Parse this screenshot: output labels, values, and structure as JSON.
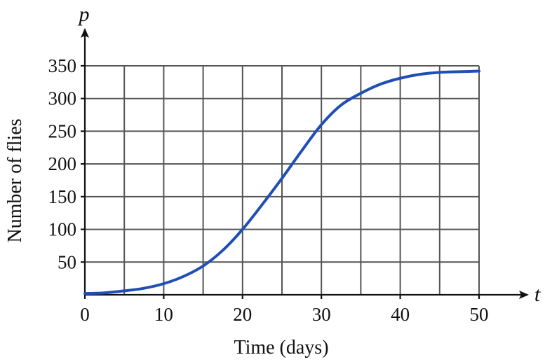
{
  "chart_data": {
    "type": "line",
    "title": "",
    "xlabel": "Time (days)",
    "ylabel": "Number of flies",
    "x_axis_variable": "t",
    "y_axis_variable": "p",
    "xlim": [
      0,
      50
    ],
    "ylim": [
      0,
      350
    ],
    "x_ticks": [
      0,
      10,
      20,
      30,
      40,
      50
    ],
    "x_tick_labels": [
      "0",
      "10",
      "20",
      "30",
      "40",
      "50"
    ],
    "y_ticks": [
      50,
      100,
      150,
      200,
      250,
      300,
      350
    ],
    "y_tick_labels": [
      "50",
      "100",
      "150",
      "200",
      "250",
      "300",
      "350"
    ],
    "grid": true,
    "grid_x_step": 5,
    "grid_y_step": 50,
    "series": [
      {
        "color": "#1f4fb5",
        "x": [
          0,
          2.5,
          5,
          7.5,
          10,
          12.5,
          15,
          17.5,
          20,
          22.5,
          25,
          27.5,
          30,
          32.5,
          35,
          37.5,
          40,
          42.5,
          45,
          47.5,
          50
        ],
        "y": [
          2,
          3,
          6,
          10,
          17,
          28,
          44,
          68,
          100,
          138,
          178,
          220,
          260,
          290,
          308,
          322,
          331,
          337,
          340,
          341,
          342
        ]
      }
    ]
  }
}
